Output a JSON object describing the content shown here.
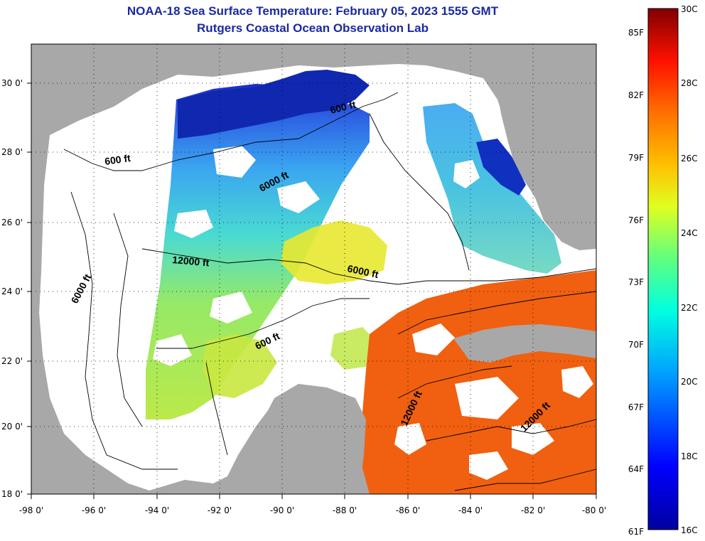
{
  "header": {
    "title": "NOAA-18 Sea Surface Temperature:  February 05, 2023 1555 GMT",
    "subtitle": "Rutgers Coastal Ocean Observation Lab"
  },
  "axes": {
    "lat_labels": [
      "30 0'",
      "28 0'",
      "26 0'",
      "24 0'",
      "22 0'",
      "20 0'",
      "18 0'"
    ],
    "lon_labels": [
      "-98 0'",
      "-96 0'",
      "-94 0'",
      "-92 0'",
      "-90 0'",
      "-88 0'",
      "-86 0'",
      "-84 0'",
      "-82 0'",
      "-80 0'"
    ]
  },
  "contours": [
    {
      "label": "600 ft"
    },
    {
      "label": "6000 ft"
    },
    {
      "label": "600 ft"
    },
    {
      "label": "12000 ft"
    },
    {
      "label": "6000 ft"
    },
    {
      "label": "6000 ft"
    },
    {
      "label": "600 ft"
    },
    {
      "label": "12000 ft"
    },
    {
      "label": "12000 ft"
    }
  ],
  "colorbar": {
    "fahrenheit": [
      "85F",
      "82F",
      "79F",
      "76F",
      "73F",
      "70F",
      "67F",
      "64F",
      "61F"
    ],
    "celsius": [
      "30C",
      "28C",
      "26C",
      "24C",
      "22C",
      "20C",
      "18C",
      "16C"
    ]
  },
  "colors": {
    "land": "#a8a8a8",
    "ocean_no_data": "#ffffff",
    "title": "#1a2aa0",
    "cold": "#0000a0",
    "mid": "#00d0ff",
    "warm": "#ff5a00"
  }
}
